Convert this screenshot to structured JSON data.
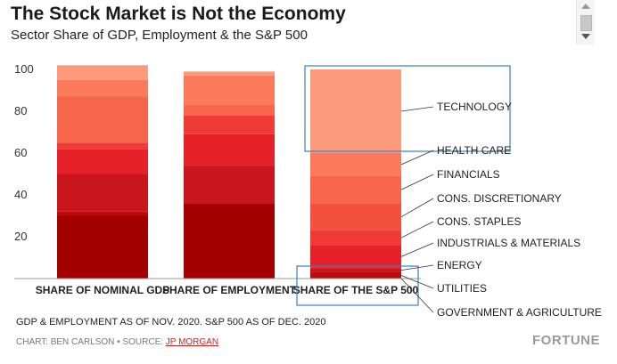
{
  "header": {
    "title": "The Stock Market is Not the Economy",
    "subtitle": "Sector Share of GDP, Employment & the S&P 500"
  },
  "footer": {
    "note": "GDP & EMPLOYMENT AS OF NOV. 2020. S&P 500 AS OF DEC. 2020",
    "credit_prefix": "CHART: BEN CARLSON • SOURCE: ",
    "source_link": "JP MORGAN",
    "brand": "FORTUNE"
  },
  "colors": {
    "government_agriculture": "#a30000",
    "utilities": "#b80c10",
    "energy": "#c9161c",
    "industrials_materials": "#e6212a",
    "cons_staples": "#ef3a35",
    "cons_discretionary": "#f4503f",
    "financials": "#f7654c",
    "health_care": "#fa7a5b",
    "technology": "#fc9a7c",
    "highlight_box": "#3a7fc0",
    "leader_line": "#333333"
  },
  "chart_data": {
    "type": "bar",
    "stacked": true,
    "categories": [
      "SHARE OF NOMINAL GDP",
      "SHARE OF EMPLOYMENT",
      "SHARE OF THE S&P 500"
    ],
    "ylim": [
      0,
      100
    ],
    "yticks": [
      20,
      40,
      60,
      80,
      100
    ],
    "grid": false,
    "legend": "right, labels beside S&P 500 bar",
    "series": [
      {
        "name": "GOVERNMENT & AGRICULTURE",
        "key": "government_agriculture",
        "values": [
          30,
          36,
          0
        ]
      },
      {
        "name": "UTILITIES",
        "key": "utilities",
        "values": [
          2,
          0,
          3
        ]
      },
      {
        "name": "ENERGY",
        "key": "energy",
        "values": [
          18,
          18,
          2
        ]
      },
      {
        "name": "INDUSTRIALS & MATERIALS",
        "key": "industrials_materials",
        "values": [
          12,
          15,
          11
        ]
      },
      {
        "name": "CONS. STAPLES",
        "key": "cons_staples",
        "values": [
          3,
          9,
          7
        ]
      },
      {
        "name": "CONS. DISCRETIONARY",
        "key": "cons_discretionary",
        "values": [
          0,
          0,
          13
        ]
      },
      {
        "name": "FINANCIALS",
        "key": "financials",
        "values": [
          22,
          5,
          13
        ]
      },
      {
        "name": "HEALTH CARE",
        "key": "health_care",
        "values": [
          8,
          14,
          11
        ]
      },
      {
        "name": "TECHNOLOGY",
        "key": "technology",
        "values": [
          7,
          2,
          40
        ]
      }
    ],
    "highlighted_categories": [
      "SHARE OF THE S&P 500"
    ],
    "highlighted_segments": [
      {
        "category": "SHARE OF THE S&P 500",
        "series": "TECHNOLOGY"
      }
    ]
  }
}
